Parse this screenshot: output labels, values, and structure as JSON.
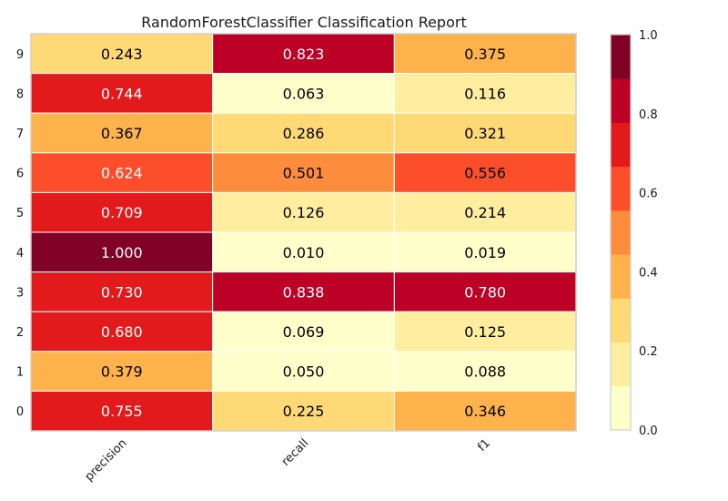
{
  "chart_data": {
    "type": "heatmap",
    "title": "RandomForestClassifier Classification Report",
    "columns": [
      "precision",
      "recall",
      "f1"
    ],
    "rows": [
      "9",
      "8",
      "7",
      "6",
      "5",
      "4",
      "3",
      "2",
      "1",
      "0"
    ],
    "values": [
      [
        0.243,
        0.823,
        0.375
      ],
      [
        0.744,
        0.063,
        0.116
      ],
      [
        0.367,
        0.286,
        0.321
      ],
      [
        0.624,
        0.501,
        0.556
      ],
      [
        0.709,
        0.126,
        0.214
      ],
      [
        1.0,
        0.01,
        0.019
      ],
      [
        0.73,
        0.838,
        0.78
      ],
      [
        0.68,
        0.069,
        0.125
      ],
      [
        0.379,
        0.05,
        0.088
      ],
      [
        0.755,
        0.225,
        0.346
      ]
    ],
    "labels": [
      [
        "0.243",
        "0.823",
        "0.375"
      ],
      [
        "0.744",
        "0.063",
        "0.116"
      ],
      [
        "0.367",
        "0.286",
        "0.321"
      ],
      [
        "0.624",
        "0.501",
        "0.556"
      ],
      [
        "0.709",
        "0.126",
        "0.214"
      ],
      [
        "1.000",
        "0.010",
        "0.019"
      ],
      [
        "0.730",
        "0.838",
        "0.780"
      ],
      [
        "0.680",
        "0.069",
        "0.125"
      ],
      [
        "0.379",
        "0.050",
        "0.088"
      ],
      [
        "0.755",
        "0.225",
        "0.346"
      ]
    ],
    "colorbar": {
      "range": [
        0.0,
        1.0
      ],
      "ticks": [
        "0.0",
        "0.2",
        "0.4",
        "0.6",
        "0.8",
        "1.0"
      ],
      "colors": [
        "#ffffcc",
        "#ffeda0",
        "#fed976",
        "#feb24c",
        "#fd8d3c",
        "#fc4e2a",
        "#e31a1c",
        "#bd0026",
        "#800026"
      ]
    },
    "text_colors": {
      "dark": "#000000",
      "light": "#ffffff",
      "light_threshold": 0.6
    },
    "grid": false
  }
}
